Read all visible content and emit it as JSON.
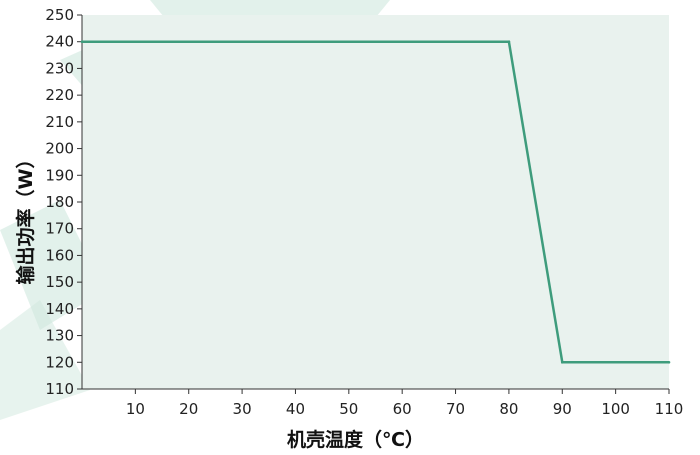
{
  "chart_data": {
    "type": "line",
    "title": "",
    "xlabel": "机壳温度（℃）",
    "ylabel": "输出功率（W）",
    "xlim": [
      0,
      110
    ],
    "ylim": [
      110,
      250
    ],
    "x_ticks": [
      "10",
      "20",
      "30",
      "40",
      "50",
      "60",
      "70",
      "80",
      "90",
      "100",
      "110"
    ],
    "y_ticks": [
      "110",
      "120",
      "130",
      "140",
      "150",
      "160",
      "170",
      "180",
      "190",
      "200",
      "210",
      "220",
      "230",
      "240",
      "250"
    ],
    "grid": false,
    "series": [
      {
        "x": [
          0,
          80,
          90,
          110
        ],
        "y": [
          240,
          240,
          120,
          120
        ]
      }
    ],
    "colors": {
      "plot_background": "#e9f2ee",
      "line": "#3e9c7c",
      "axis": "#333333",
      "watermark": "#cfe8de"
    }
  }
}
